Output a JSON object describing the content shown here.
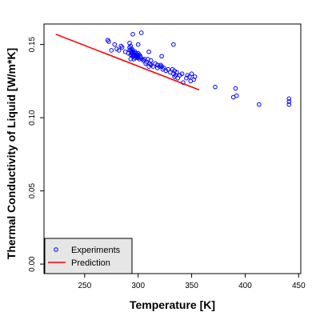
{
  "colors": {
    "experiments": "#0000ff",
    "prediction": "#ff0000",
    "frame": "#000000",
    "legend_bg": "#e6e6e6"
  },
  "chart_data": {
    "type": "scatter",
    "title": "",
    "xlabel": "Temperature [K]",
    "ylabel": "Thermal Conductivity of Liquid [W/m*K]",
    "xlim": [
      212,
      452
    ],
    "ylim": [
      -0.0065,
      0.164
    ],
    "xticks": [
      250,
      300,
      350,
      400,
      450
    ],
    "xtick_labels": [
      "250",
      "300",
      "350",
      "400",
      "450"
    ],
    "yticks": [
      0.0,
      0.05,
      0.1,
      0.15
    ],
    "ytick_labels": [
      "0.00",
      "0.05",
      "0.10",
      "0.15"
    ],
    "grid": false,
    "legend_position": "bottom-left",
    "legend": [
      {
        "label": "Experiments",
        "marker": "o"
      },
      {
        "label": "Prediction"
      }
    ],
    "series": [
      {
        "name": "Experiments",
        "kind": "points",
        "points": [
          [
            271.5,
            0.153
          ],
          [
            272.5,
            0.152
          ],
          [
            275,
            0.146
          ],
          [
            278,
            0.15
          ],
          [
            280,
            0.147
          ],
          [
            282,
            0.146
          ],
          [
            284,
            0.149
          ],
          [
            285,
            0.148
          ],
          [
            288,
            0.145
          ],
          [
            291,
            0.144
          ],
          [
            292,
            0.146
          ],
          [
            292,
            0.148
          ],
          [
            292,
            0.151
          ],
          [
            293,
            0.149
          ],
          [
            293,
            0.146
          ],
          [
            293,
            0.143
          ],
          [
            293,
            0.14
          ],
          [
            294,
            0.147
          ],
          [
            294,
            0.145
          ],
          [
            294,
            0.144
          ],
          [
            295,
            0.146
          ],
          [
            295,
            0.143
          ],
          [
            295,
            0.142
          ],
          [
            296,
            0.144
          ],
          [
            296,
            0.142
          ],
          [
            296,
            0.14
          ],
          [
            297,
            0.145
          ],
          [
            297,
            0.143
          ],
          [
            297,
            0.141
          ],
          [
            298,
            0.144
          ],
          [
            298,
            0.142
          ],
          [
            299,
            0.143
          ],
          [
            299,
            0.141
          ],
          [
            300,
            0.144
          ],
          [
            300,
            0.142
          ],
          [
            300,
            0.141
          ],
          [
            301,
            0.143
          ],
          [
            301,
            0.14
          ],
          [
            302,
            0.142
          ],
          [
            302,
            0.141
          ],
          [
            295,
            0.157
          ],
          [
            303,
            0.158
          ],
          [
            300,
            0.15
          ],
          [
            304,
            0.14
          ],
          [
            305,
            0.139
          ],
          [
            306,
            0.14
          ],
          [
            307,
            0.137
          ],
          [
            308,
            0.138
          ],
          [
            309,
            0.14
          ],
          [
            310,
            0.135
          ],
          [
            311,
            0.137
          ],
          [
            312,
            0.136
          ],
          [
            312,
            0.139
          ],
          [
            314,
            0.135
          ],
          [
            316,
            0.137
          ],
          [
            318,
            0.134
          ],
          [
            318,
            0.136
          ],
          [
            320,
            0.135
          ],
          [
            321,
            0.136
          ],
          [
            322,
            0.135
          ],
          [
            323,
            0.133
          ],
          [
            324,
            0.134
          ],
          [
            326,
            0.132
          ],
          [
            328,
            0.133
          ],
          [
            330,
            0.131
          ],
          [
            332,
            0.133
          ],
          [
            333,
            0.13
          ],
          [
            334,
            0.132
          ],
          [
            334,
            0.128
          ],
          [
            335,
            0.129
          ],
          [
            336,
            0.131
          ],
          [
            337,
            0.127
          ],
          [
            339,
            0.129
          ],
          [
            341,
            0.13
          ],
          [
            342,
            0.124
          ],
          [
            345,
            0.127
          ],
          [
            346,
            0.129
          ],
          [
            348,
            0.128
          ],
          [
            349,
            0.125
          ],
          [
            350,
            0.13
          ],
          [
            352,
            0.126
          ],
          [
            353,
            0.128
          ],
          [
            333,
            0.15
          ],
          [
            322,
            0.142
          ],
          [
            310,
            0.145
          ],
          [
            372,
            0.121
          ],
          [
            389,
            0.114
          ],
          [
            391,
            0.12
          ],
          [
            392,
            0.115
          ],
          [
            413,
            0.109
          ],
          [
            441,
            0.109
          ],
          [
            441,
            0.111
          ],
          [
            441,
            0.113
          ]
        ]
      },
      {
        "name": "Prediction",
        "kind": "line",
        "points": [
          [
            223,
            0.157
          ],
          [
            357,
            0.119
          ]
        ]
      }
    ]
  }
}
